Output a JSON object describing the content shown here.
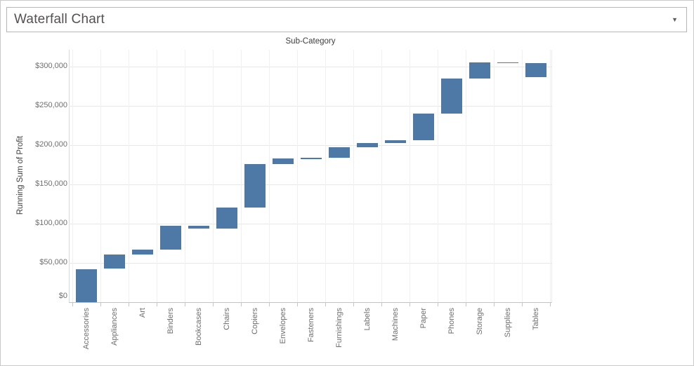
{
  "header": {
    "parameter_value": "Waterfall Chart",
    "dropdown_icon": "▼"
  },
  "chart_data": {
    "type": "bar",
    "subtype": "waterfall",
    "title": "Sub-Category",
    "xlabel": "",
    "ylabel": "Running Sum of Profit",
    "bar_color": "#4e79a7",
    "legend": "none",
    "grid": "light horizontal gridlines at each tick plus faint vertical column dividers",
    "categories": [
      "Accessories",
      "Appliances",
      "Art",
      "Binders",
      "Bookcases",
      "Chairs",
      "Copiers",
      "Envelopes",
      "Fasteners",
      "Furnishings",
      "Labels",
      "Machines",
      "Paper",
      "Phones",
      "Storage",
      "Supplies",
      "Tables"
    ],
    "profit_by_category": [
      41937,
      18138,
      6528,
      30222,
      -3473,
      26590,
      55618,
      6964,
      950,
      13059,
      5546,
      3385,
      34054,
      44516,
      21279,
      -1189,
      -17725
    ],
    "running_sum_of_profit": [
      41937,
      60075,
      66603,
      96825,
      93352,
      119942,
      175560,
      182524,
      183474,
      196533,
      202079,
      205464,
      239518,
      284034,
      305313,
      304124,
      286399
    ],
    "y_ticks": [
      {
        "label": "$0",
        "value": 0
      },
      {
        "label": "$50,000",
        "value": 50000
      },
      {
        "label": "$100,000",
        "value": 100000
      },
      {
        "label": "$150,000",
        "value": 150000
      },
      {
        "label": "$200,000",
        "value": 200000
      },
      {
        "label": "$250,000",
        "value": 250000
      },
      {
        "label": "$300,000",
        "value": 300000
      }
    ],
    "ylim": [
      0,
      320000
    ]
  }
}
